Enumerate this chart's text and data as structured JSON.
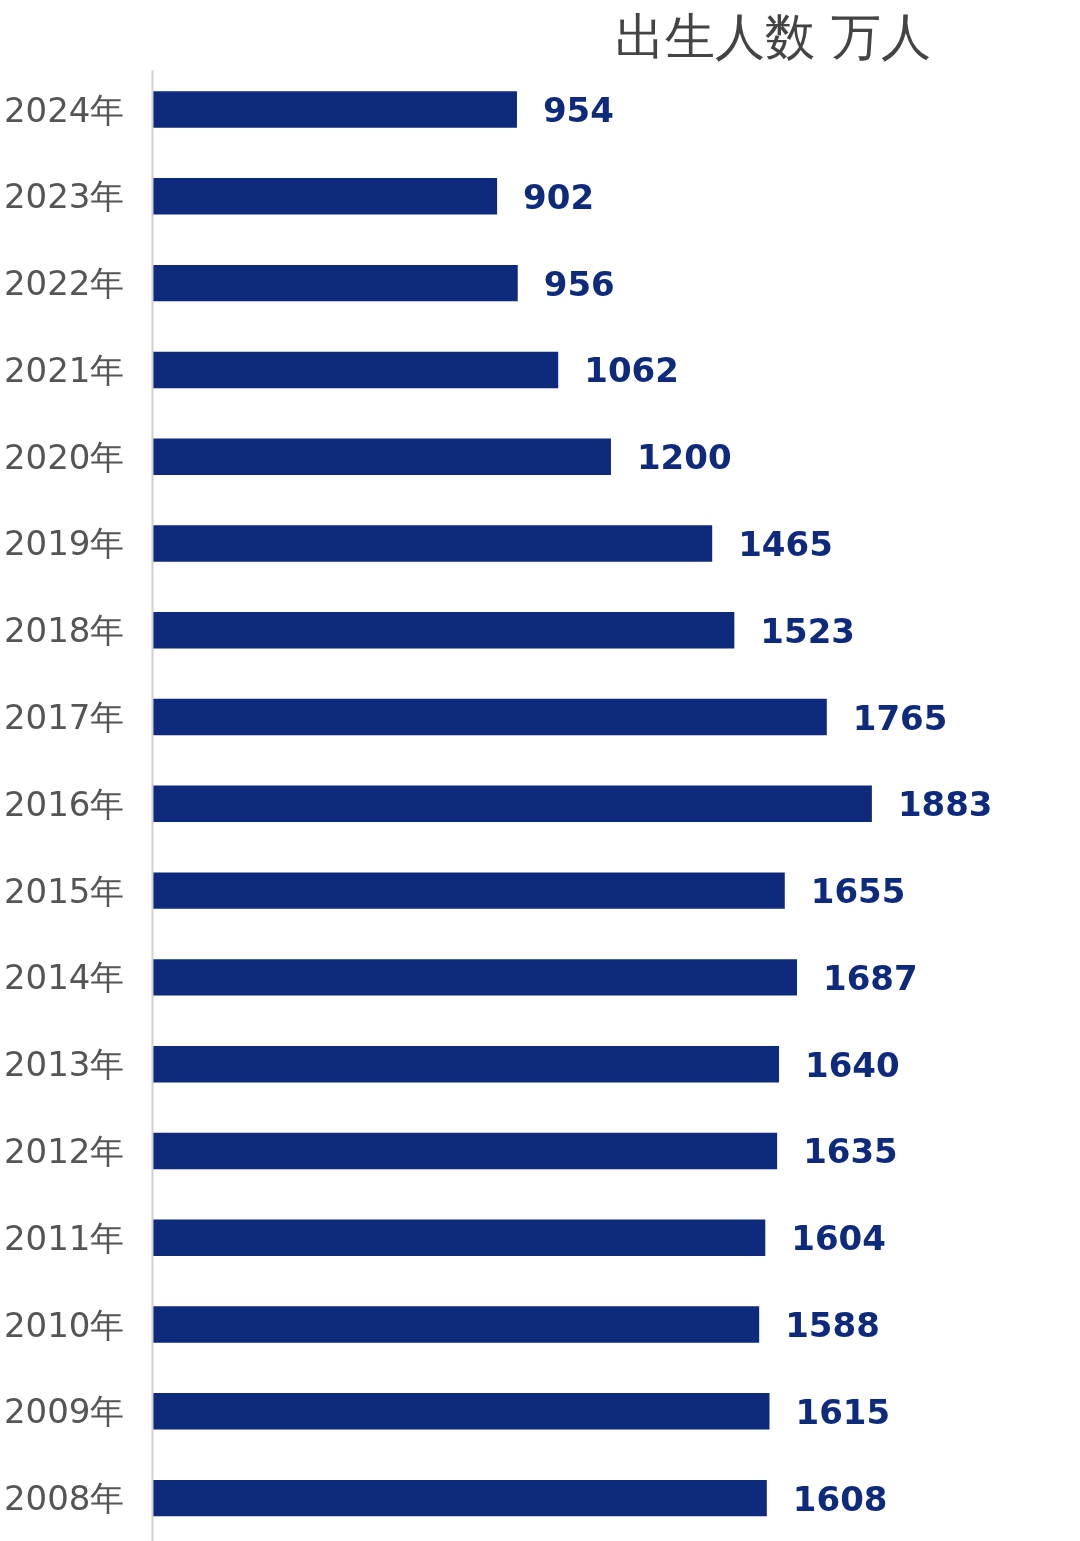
{
  "chart_data": {
    "type": "bar",
    "orientation": "horizontal",
    "title": "出生人数 万人",
    "categories": [
      "2024年",
      "2023年",
      "2022年",
      "2021年",
      "2020年",
      "2019年",
      "2018年",
      "2017年",
      "2016年",
      "2015年",
      "2014年",
      "2013年",
      "2012年",
      "2011年",
      "2010年",
      "2009年",
      "2008年"
    ],
    "values": [
      954,
      902,
      956,
      1062,
      1200,
      1465,
      1523,
      1765,
      1883,
      1655,
      1687,
      1640,
      1635,
      1604,
      1588,
      1615,
      1608
    ],
    "color": "#0d2a7c",
    "data_labels": true,
    "tick_labels": "y"
  }
}
